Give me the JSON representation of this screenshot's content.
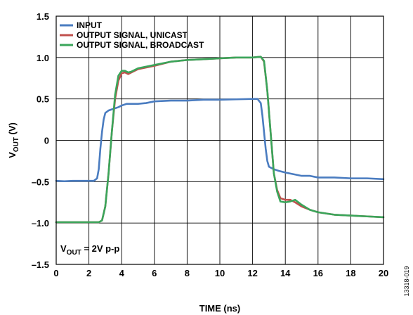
{
  "chart_data": {
    "type": "line",
    "xlabel": "TIME (ns)",
    "ylabel": {
      "main": "V",
      "sub": "OUT",
      "rest": " (V)"
    },
    "xlim": [
      0,
      20
    ],
    "ylim": [
      -1.5,
      1.5
    ],
    "x_ticks": [
      {
        "value": 0,
        "label": "0"
      },
      {
        "value": 2,
        "label": "2"
      },
      {
        "value": 4,
        "label": "4"
      },
      {
        "value": 6,
        "label": "6"
      },
      {
        "value": 8,
        "label": "8"
      },
      {
        "value": 10,
        "label": "10"
      },
      {
        "value": 12,
        "label": "12"
      },
      {
        "value": 14,
        "label": "14"
      },
      {
        "value": 16,
        "label": "16"
      },
      {
        "value": 18,
        "label": "18"
      },
      {
        "value": 20,
        "label": "20"
      }
    ],
    "y_ticks": [
      {
        "value": 1.5,
        "label": "1.5"
      },
      {
        "value": 1.0,
        "label": "1.0"
      },
      {
        "value": 0.5,
        "label": "0.5"
      },
      {
        "value": 0,
        "label": "0"
      },
      {
        "value": -0.5,
        "label": "–0.5"
      },
      {
        "value": -1.0,
        "label": "–1.0"
      },
      {
        "value": -1.5,
        "label": "–1.5"
      }
    ],
    "grid": true,
    "legend_position": "top-left",
    "annotation": {
      "main": "V",
      "sub": "OUT",
      "rest": " = 2V p-p"
    },
    "figure_id": "13318-019",
    "series": [
      {
        "name": "INPUT",
        "color": "#4a7cc0",
        "points": [
          [
            0,
            -0.49
          ],
          [
            0.5,
            -0.495
          ],
          [
            1,
            -0.49
          ],
          [
            1.5,
            -0.49
          ],
          [
            2,
            -0.49
          ],
          [
            2.3,
            -0.49
          ],
          [
            2.5,
            -0.46
          ],
          [
            2.6,
            -0.35
          ],
          [
            2.7,
            -0.1
          ],
          [
            2.8,
            0.1
          ],
          [
            2.9,
            0.25
          ],
          [
            3.0,
            0.33
          ],
          [
            3.2,
            0.36
          ],
          [
            3.5,
            0.38
          ],
          [
            3.8,
            0.4
          ],
          [
            4.0,
            0.42
          ],
          [
            4.3,
            0.44
          ],
          [
            5.0,
            0.44
          ],
          [
            5.5,
            0.45
          ],
          [
            6,
            0.47
          ],
          [
            7,
            0.48
          ],
          [
            8,
            0.48
          ],
          [
            9,
            0.49
          ],
          [
            10,
            0.49
          ],
          [
            11,
            0.495
          ],
          [
            12,
            0.5
          ],
          [
            12.3,
            0.5
          ],
          [
            12.5,
            0.45
          ],
          [
            12.6,
            0.3
          ],
          [
            12.7,
            0.1
          ],
          [
            12.8,
            -0.1
          ],
          [
            12.9,
            -0.25
          ],
          [
            13,
            -0.32
          ],
          [
            13.3,
            -0.35
          ],
          [
            13.6,
            -0.37
          ],
          [
            14,
            -0.39
          ],
          [
            14.5,
            -0.41
          ],
          [
            15,
            -0.43
          ],
          [
            15.5,
            -0.43
          ],
          [
            16,
            -0.45
          ],
          [
            17,
            -0.45
          ],
          [
            18,
            -0.46
          ],
          [
            19,
            -0.46
          ],
          [
            20,
            -0.47
          ]
        ]
      },
      {
        "name": "OUTPUT SIGNAL, UNICAST",
        "color": "#c0504d",
        "points": [
          [
            0,
            -0.99
          ],
          [
            1,
            -0.99
          ],
          [
            2,
            -0.99
          ],
          [
            2.6,
            -0.99
          ],
          [
            2.8,
            -0.97
          ],
          [
            3.0,
            -0.8
          ],
          [
            3.2,
            -0.4
          ],
          [
            3.4,
            0.1
          ],
          [
            3.6,
            0.5
          ],
          [
            3.8,
            0.72
          ],
          [
            4.0,
            0.81
          ],
          [
            4.2,
            0.82
          ],
          [
            4.4,
            0.8
          ],
          [
            4.6,
            0.82
          ],
          [
            5,
            0.86
          ],
          [
            6,
            0.9
          ],
          [
            7,
            0.95
          ],
          [
            8,
            0.97
          ],
          [
            9,
            0.98
          ],
          [
            10,
            0.99
          ],
          [
            11,
            1.0
          ],
          [
            12,
            1.0
          ],
          [
            12.5,
            1.01
          ],
          [
            12.7,
            0.95
          ],
          [
            12.9,
            0.6
          ],
          [
            13.1,
            0.1
          ],
          [
            13.3,
            -0.4
          ],
          [
            13.5,
            -0.6
          ],
          [
            13.7,
            -0.7
          ],
          [
            14,
            -0.72
          ],
          [
            14.3,
            -0.72
          ],
          [
            14.6,
            -0.75
          ],
          [
            15,
            -0.8
          ],
          [
            15.5,
            -0.84
          ],
          [
            16,
            -0.87
          ],
          [
            17,
            -0.9
          ],
          [
            18,
            -0.91
          ],
          [
            19,
            -0.92
          ],
          [
            20,
            -0.93
          ]
        ]
      },
      {
        "name": "OUTPUT SIGNAL, BROADCAST",
        "color": "#3aa55a",
        "points": [
          [
            0,
            -0.99
          ],
          [
            1,
            -0.99
          ],
          [
            2,
            -0.99
          ],
          [
            2.6,
            -0.99
          ],
          [
            2.8,
            -0.97
          ],
          [
            3.0,
            -0.8
          ],
          [
            3.2,
            -0.4
          ],
          [
            3.4,
            0.1
          ],
          [
            3.6,
            0.55
          ],
          [
            3.8,
            0.78
          ],
          [
            4.0,
            0.84
          ],
          [
            4.2,
            0.84
          ],
          [
            4.4,
            0.82
          ],
          [
            4.6,
            0.83
          ],
          [
            5,
            0.87
          ],
          [
            6,
            0.91
          ],
          [
            7,
            0.95
          ],
          [
            8,
            0.97
          ],
          [
            9,
            0.98
          ],
          [
            10,
            0.99
          ],
          [
            11,
            1.0
          ],
          [
            12,
            1.0
          ],
          [
            12.5,
            1.01
          ],
          [
            12.7,
            0.96
          ],
          [
            12.9,
            0.6
          ],
          [
            13.1,
            0.1
          ],
          [
            13.3,
            -0.4
          ],
          [
            13.5,
            -0.62
          ],
          [
            13.7,
            -0.74
          ],
          [
            14,
            -0.75
          ],
          [
            14.3,
            -0.74
          ],
          [
            14.6,
            -0.72
          ],
          [
            15,
            -0.78
          ],
          [
            15.5,
            -0.84
          ],
          [
            16,
            -0.87
          ],
          [
            17,
            -0.9
          ],
          [
            18,
            -0.91
          ],
          [
            19,
            -0.92
          ],
          [
            20,
            -0.93
          ]
        ]
      }
    ]
  }
}
